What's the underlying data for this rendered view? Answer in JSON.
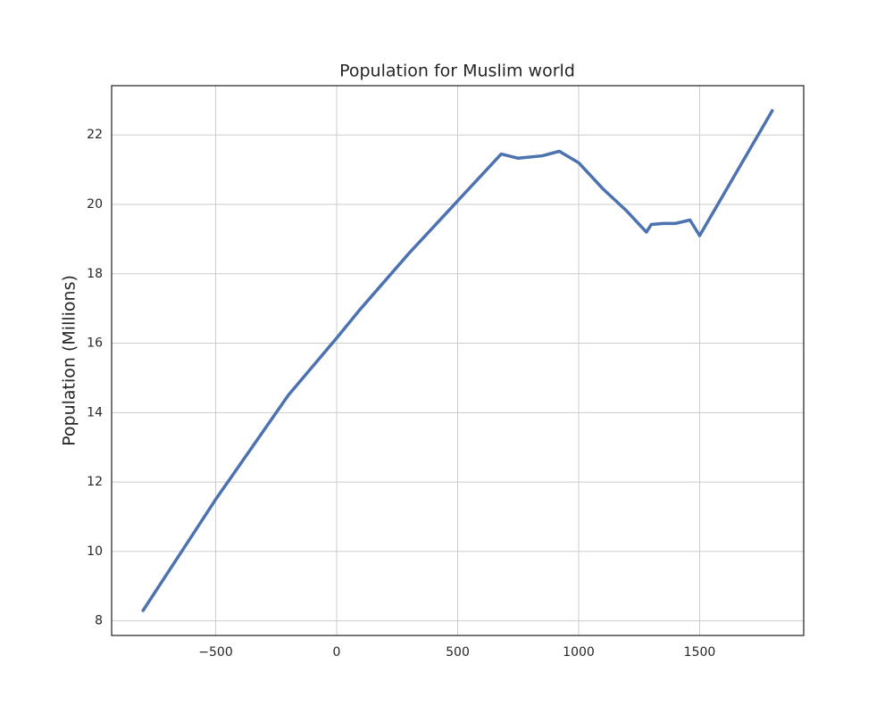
{
  "chart_data": {
    "type": "line",
    "title": "Population for Muslim world",
    "y_label": "Population (Millions)",
    "x": [
      -800,
      -650,
      -500,
      -350,
      -200,
      0,
      100,
      300,
      500,
      680,
      750,
      850,
      920,
      1000,
      1100,
      1200,
      1280,
      1300,
      1350,
      1400,
      1460,
      1500,
      1650,
      1800
    ],
    "values": [
      8.3,
      9.9,
      11.5,
      13.0,
      14.5,
      16.15,
      17.0,
      18.6,
      20.1,
      21.45,
      21.33,
      21.4,
      21.53,
      21.2,
      20.45,
      19.8,
      19.2,
      19.42,
      19.45,
      19.45,
      19.55,
      19.1,
      20.9,
      22.7
    ],
    "color": "#4c72b0",
    "xlim": [
      -930,
      1930
    ],
    "xticks": [
      {
        "value": -500,
        "label": "−500"
      },
      0,
      500,
      1000,
      1500
    ],
    "ylim": [
      7.58,
      23.42
    ],
    "yticks": [
      8,
      10,
      12,
      14,
      16,
      18,
      20,
      22
    ],
    "grid": true
  }
}
